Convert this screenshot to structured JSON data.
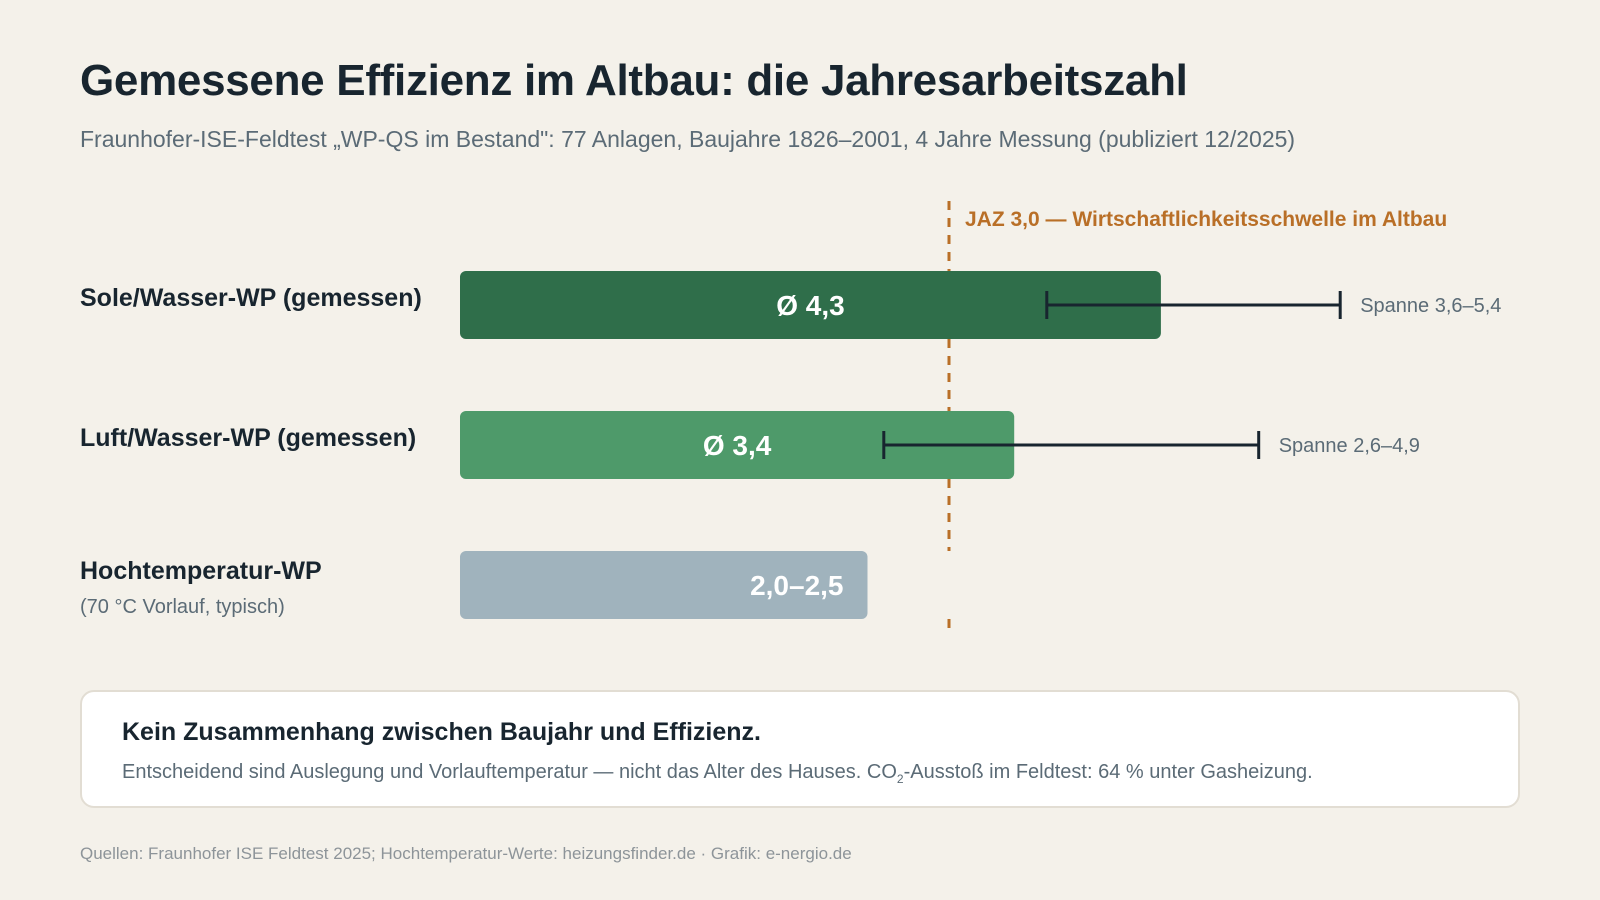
{
  "header": {
    "title": "Gemessene Effizienz im Altbau: die Jahresarbeitszahl",
    "subtitle": "Fraunhofer-ISE-Feldtest „WP-QS im Bestand\": 77 Anlagen, Baujahre 1826–2001, 4 Jahre Messung (publiziert 12/2025)"
  },
  "chart_data": {
    "type": "bar",
    "orientation": "horizontal",
    "xlim": [
      0,
      6
    ],
    "reference_line": {
      "value": 3.0,
      "label": "JAZ 3,0 — Wirtschaftlichkeitsschwelle im Altbau",
      "color": "#b96f27",
      "style": "dashed"
    },
    "bars": [
      {
        "category": "Sole/Wasser-WP (gemessen)",
        "sublabel": "",
        "value": 4.3,
        "value_label": "Ø 4,3",
        "range": [
          3.6,
          5.4
        ],
        "range_label": "Spanne 3,6–5,4",
        "color": "#2f6e4a"
      },
      {
        "category": "Luft/Wasser-WP (gemessen)",
        "sublabel": "",
        "value": 3.4,
        "value_label": "Ø 3,4",
        "range": [
          2.6,
          4.9
        ],
        "range_label": "Spanne 2,6–4,9",
        "color": "#4e9a6a"
      },
      {
        "category": "Hochtemperatur-WP",
        "sublabel": "(70 °C Vorlauf, typisch)",
        "value": 2.25,
        "value_min": 2.0,
        "value_max": 2.5,
        "value_label": "2,0–2,5",
        "color": "#a0b3bd"
      }
    ]
  },
  "note": {
    "title": "Kein Zusammenhang zwischen Baujahr und Effizienz.",
    "text_before": "Entscheidend sind Auslegung und Vorlauftemperatur — nicht das Alter des Hauses. CO",
    "subscript": "2",
    "text_after": "-Ausstoß im Feldtest: 64 % unter Gasheizung."
  },
  "footer": {
    "source": "Quellen: Fraunhofer ISE Feldtest 2025; Hochtemperatur-Werte: heizungsfinder.de · Grafik: e-nergio.de"
  }
}
